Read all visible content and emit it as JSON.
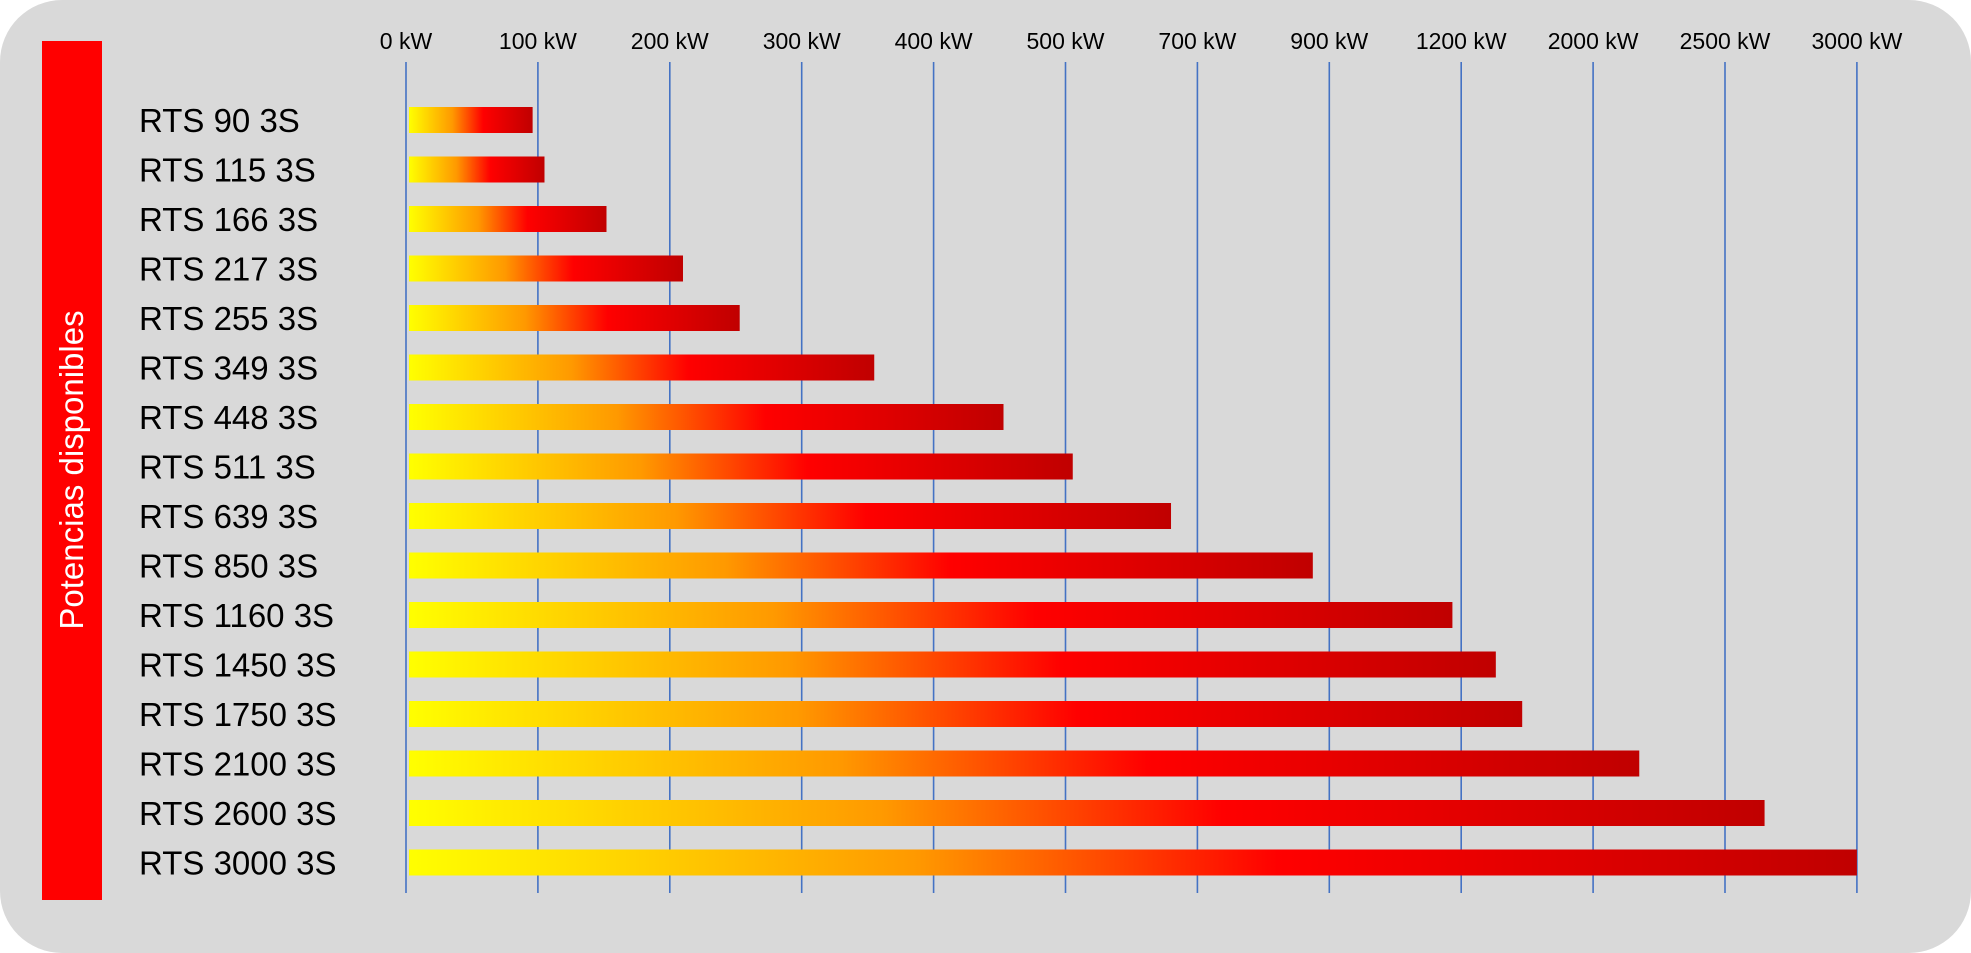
{
  "chart_data": {
    "type": "bar",
    "orientation": "horizontal",
    "title": "",
    "ylabel": "Potencias disponibles",
    "xlabel": "",
    "x_ticks": [
      {
        "label": "0 kW",
        "value": 0
      },
      {
        "label": "100 kW",
        "value": 100
      },
      {
        "label": "200 kW",
        "value": 200
      },
      {
        "label": "300 kW",
        "value": 300
      },
      {
        "label": "400 kW",
        "value": 400
      },
      {
        "label": "500 kW",
        "value": 500
      },
      {
        "label": "700 kW",
        "value": 700
      },
      {
        "label": "900 kW",
        "value": 900
      },
      {
        "label": "1200 kW",
        "value": 1200
      },
      {
        "label": "2000 kW",
        "value": 2000
      },
      {
        "label": "2500 kW",
        "value": 2500
      },
      {
        "label": "3000 kW",
        "value": 3000
      }
    ],
    "x_axis_position": "top",
    "xlim": [
      0,
      3000
    ],
    "x_scale": "piecewise (non-uniform tick spacing)",
    "grid": true,
    "legend": "none",
    "categories": [
      "RTS 90 3S",
      "RTS 115 3S",
      "RTS 166 3S",
      "RTS 217 3S",
      "RTS 255 3S",
      "RTS 349 3S",
      "RTS 448 3S",
      "RTS 511 3S",
      "RTS 639 3S",
      "RTS 850 3S",
      "RTS 1160 3S",
      "RTS 1450 3S",
      "RTS 1750 3S",
      "RTS 2100 3S",
      "RTS 2600 3S",
      "RTS 3000 3S"
    ],
    "values": [
      96,
      105,
      152,
      210,
      253,
      355,
      453,
      511,
      660,
      875,
      1180,
      1410,
      1570,
      2175,
      2650,
      3000
    ],
    "unit": "kW",
    "colors": {
      "background": "#d9d9d9",
      "band": "#ff0000",
      "band_text": "#ffffff",
      "gridline": "#4472c4",
      "bar_gradient": [
        "#ffff00",
        "#ff9900",
        "#ff0000",
        "#c00000"
      ]
    }
  }
}
